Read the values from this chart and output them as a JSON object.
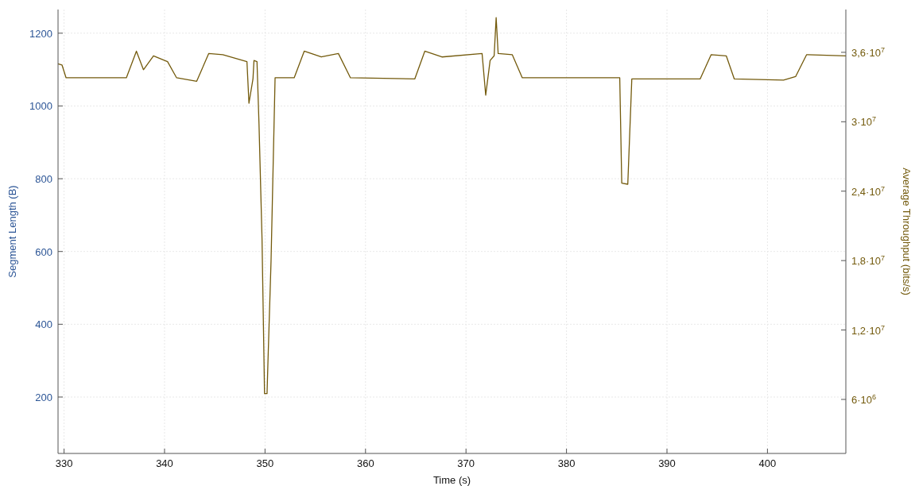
{
  "chart_data": {
    "type": "line",
    "xlabel": "Time (s)",
    "ylabel": "Segment Length (B)",
    "y2label": "Average Throughput (bits/s)",
    "xlim": [
      329.4,
      407.8
    ],
    "xticks": [
      330,
      340,
      350,
      360,
      370,
      380,
      390,
      400
    ],
    "ylim": [
      45,
      1265
    ],
    "yticks": [
      200,
      400,
      600,
      800,
      1000,
      1200
    ],
    "y2lim": [
      1330000,
      39700000
    ],
    "y2ticks": [
      {
        "value": 6000000,
        "label": "6·10$^{6}$"
      },
      {
        "value": 12000000,
        "label": "1,2·10$^{7}$"
      },
      {
        "value": 18000000,
        "label": "1,8·10$^{7}$"
      },
      {
        "value": 24000000,
        "label": "2,4·10$^{7}$"
      },
      {
        "value": 30000000,
        "label": "3·10$^{7}$"
      },
      {
        "value": 36000000,
        "label": "3,6·10$^{7}$"
      }
    ],
    "grid": true,
    "series": [
      {
        "axis": "y2",
        "color": "#735a0c",
        "x": [
          329.4,
          329.8,
          330.2,
          336.2,
          337.2,
          337.9,
          338.9,
          340.3,
          341.2,
          343.2,
          344.4,
          345.8,
          348.2,
          348.4,
          348.8,
          348.9,
          349.2,
          349.4,
          349.7,
          349.95,
          350.2,
          350.3,
          350.6,
          351.0,
          352.9,
          353.9,
          355.6,
          357.3,
          358.5,
          364.9,
          365.9,
          367.6,
          371.6,
          371.96,
          372.4,
          372.8,
          373.0,
          373.2,
          374.6,
          375.6,
          385.3,
          385.5,
          386.1,
          386.5,
          393.3,
          394.4,
          395.9,
          396.7,
          401.6,
          402.8,
          403.9,
          407.8
        ],
        "values": [
          35000000,
          34900000,
          33800000,
          33800000,
          36100000,
          34500000,
          35700000,
          35200000,
          33800000,
          33500000,
          35900000,
          35800000,
          35200000,
          31600000,
          33700000,
          35300000,
          35200000,
          29800000,
          19900000,
          6500000,
          6500000,
          9500000,
          18000000,
          33800000,
          33800000,
          36100000,
          35600000,
          35900000,
          33800000,
          33700000,
          36100000,
          35600000,
          35900000,
          32300000,
          35300000,
          35700000,
          39000000,
          35900000,
          35800000,
          33800000,
          33800000,
          24700000,
          24600000,
          33700000,
          33700000,
          35800000,
          35700000,
          33700000,
          33600000,
          33900000,
          35800000,
          35700000
        ]
      }
    ]
  }
}
